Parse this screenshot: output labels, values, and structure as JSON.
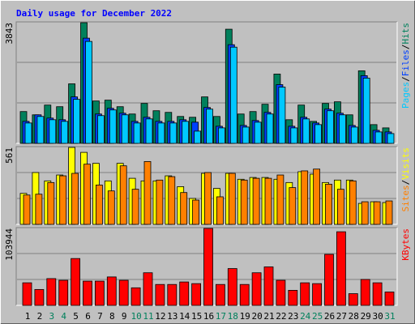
{
  "title": "Daily usage for December 2022",
  "legend_separator": "/",
  "chart_data": [
    {
      "type": "bar",
      "series": [
        {
          "name": "Hits",
          "color": "#00805c",
          "values": [
            1013,
            909,
            1220,
            1168,
            1896,
            3843,
            1350,
            1376,
            1168,
            935,
            1272,
            1039,
            987,
            857,
            831,
            1480,
            857,
            3635,
            935,
            1013,
            1246,
            2207,
            753,
            1220,
            701,
            1272,
            1324,
            909,
            2311,
            597,
            493
          ]
        },
        {
          "name": "Files",
          "color": "#0040ff",
          "values": [
            701,
            909,
            805,
            753,
            1480,
            3350,
            935,
            1117,
            961,
            701,
            831,
            701,
            701,
            753,
            675,
            1143,
            545,
            3142,
            571,
            727,
            987,
            1870,
            545,
            831,
            649,
            1091,
            961,
            571,
            2156,
            416,
            364
          ]
        },
        {
          "name": "Pages",
          "color": "#00c8ff",
          "values": [
            649,
            857,
            753,
            701,
            1402,
            3246,
            883,
            1065,
            909,
            649,
            779,
            649,
            649,
            701,
            390,
            1091,
            493,
            3064,
            519,
            675,
            935,
            1792,
            493,
            779,
            597,
            1039,
            909,
            519,
            2078,
            364,
            312
          ]
        }
      ],
      "ylim": [
        0,
        3843
      ],
      "yticks": [
        3843
      ]
    },
    {
      "type": "bar",
      "series": [
        {
          "name": "Visits",
          "color": "#ffff00",
          "values": [
            226,
            378,
            317,
            360,
            561,
            525,
            445,
            317,
            445,
            336,
            317,
            317,
            354,
            275,
            189,
            372,
            262,
            372,
            329,
            342,
            342,
            329,
            305,
            384,
            366,
            305,
            323,
            323,
            153,
            165,
            159
          ]
        },
        {
          "name": "Sites",
          "color": "#ff8000",
          "values": [
            214,
            220,
            305,
            354,
            372,
            439,
            287,
            244,
            427,
            256,
            458,
            323,
            348,
            232,
            177,
            378,
            201,
            372,
            323,
            336,
            336,
            360,
            268,
            390,
            403,
            293,
            256,
            317,
            165,
            165,
            171
          ]
        }
      ],
      "ylim": [
        0,
        561
      ],
      "yticks": [
        561
      ]
    },
    {
      "type": "bar",
      "categories": [
        "1",
        "2",
        "3",
        "4",
        "5",
        "6",
        "7",
        "8",
        "9",
        "10",
        "11",
        "12",
        "13",
        "14",
        "15",
        "16",
        "17",
        "18",
        "19",
        "20",
        "21",
        "22",
        "23",
        "24",
        "25",
        "26",
        "27",
        "28",
        "29",
        "30",
        "31"
      ],
      "weekend_indices": [
        2,
        3,
        9,
        10,
        16,
        17,
        23,
        24,
        30
      ],
      "weekend_color": "#00805c",
      "series": [
        {
          "name": "KBytes",
          "color": "#ff0000",
          "values": [
            30510,
            21470,
            36160,
            33900,
            63280,
            32770,
            32770,
            38420,
            33900,
            23730,
            44070,
            28250,
            28250,
            31640,
            29380,
            103944,
            28250,
            49720,
            28250,
            44070,
            51980,
            33900,
            20340,
            30510,
            29380,
            68930,
            99440,
            15820,
            35030,
            30510,
            18080
          ]
        }
      ],
      "ylim": [
        0,
        103944
      ],
      "yticks": [
        103944
      ]
    }
  ]
}
